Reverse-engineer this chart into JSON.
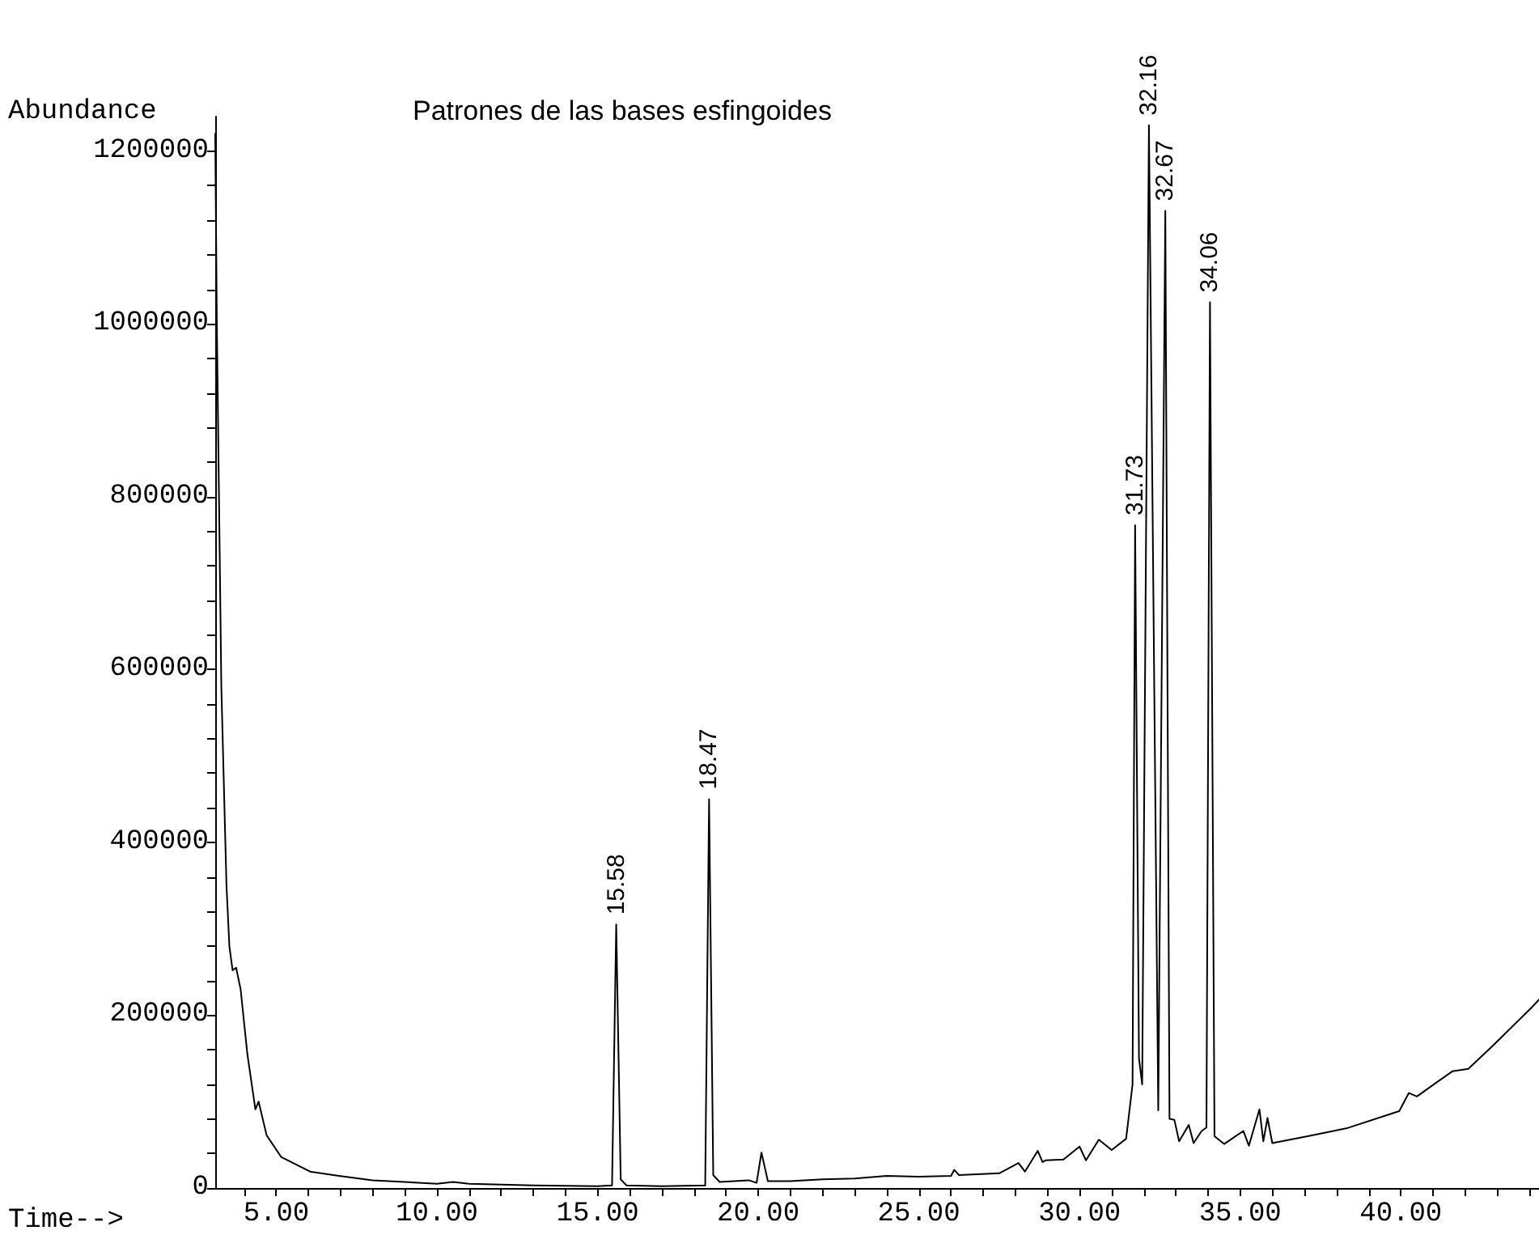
{
  "chart_data": {
    "type": "line",
    "title": "Patrones de las bases esfingoides",
    "xlabel": "Time-->",
    "ylabel": "Abundance",
    "x": [
      3.1,
      3.15,
      3.29,
      3.45,
      3.54,
      3.64,
      3.75,
      3.89,
      4.1,
      4.35,
      4.45,
      4.7,
      5.15,
      6.05,
      6.95,
      8.0,
      10.0,
      10.5,
      11.0,
      13.0,
      15.0,
      15.45,
      15.58,
      15.72,
      15.9,
      17.0,
      18.35,
      18.47,
      18.6,
      18.8,
      19.7,
      19.95,
      20.1,
      20.3,
      21.0,
      22.0,
      23.0,
      24.0,
      25.0,
      26.0,
      26.1,
      26.25,
      27.5,
      28.1,
      28.3,
      28.7,
      28.85,
      28.95,
      29.5,
      30.0,
      30.2,
      30.6,
      31.0,
      31.45,
      31.65,
      31.73,
      31.85,
      31.95,
      32.16,
      32.45,
      32.67,
      32.8,
      32.95,
      33.1,
      33.4,
      33.55,
      33.8,
      33.95,
      34.06,
      34.2,
      34.5,
      35.1,
      35.27,
      35.6,
      35.72,
      35.85,
      36.0,
      37.1,
      38.3,
      39.95,
      40.25,
      40.5,
      41.6,
      42.1,
      42.9,
      44.1,
      44.3
    ],
    "series": [
      {
        "color": "#000000",
        "values": [
          1220000,
          1000000,
          580000,
          350000,
          280000,
          252000,
          255000,
          230000,
          155000,
          91000,
          100000,
          61000,
          36000,
          19000,
          14000,
          9000,
          5000,
          7000,
          5000,
          3000,
          2000,
          3000,
          305000,
          10000,
          3000,
          2000,
          3000,
          450000,
          15000,
          7000,
          9000,
          6000,
          41000,
          8000,
          8000,
          10000,
          11000,
          14000,
          13000,
          14000,
          21000,
          15000,
          17000,
          29000,
          19000,
          43000,
          30000,
          32000,
          33000,
          48000,
          32000,
          56000,
          44000,
          57000,
          120000,
          767000,
          150000,
          120000,
          1230000,
          90000,
          1131000,
          80000,
          79000,
          54000,
          73000,
          52000,
          66000,
          70000,
          1025000,
          60000,
          51000,
          66000,
          49000,
          91000,
          54000,
          81000,
          52000,
          60000,
          69000,
          89000,
          110000,
          106000,
          135000,
          138000,
          166000,
          210000,
          218000
        ]
      }
    ],
    "xlim": [
      3.1,
      44.3
    ],
    "ylim": [
      0,
      1240000
    ],
    "xticks": [
      {
        "value": 4,
        "label": null
      },
      {
        "value": 5,
        "label": "5.00"
      },
      {
        "value": 6,
        "label": null
      },
      {
        "value": 7,
        "label": null
      },
      {
        "value": 8,
        "label": null
      },
      {
        "value": 9,
        "label": null
      },
      {
        "value": 10,
        "label": "10.00"
      },
      {
        "value": 11,
        "label": null
      },
      {
        "value": 12,
        "label": null
      },
      {
        "value": 13,
        "label": null
      },
      {
        "value": 14,
        "label": null
      },
      {
        "value": 15,
        "label": "15.00"
      },
      {
        "value": 16,
        "label": null
      },
      {
        "value": 17,
        "label": null
      },
      {
        "value": 18,
        "label": null
      },
      {
        "value": 19,
        "label": null
      },
      {
        "value": 20,
        "label": "20.00"
      },
      {
        "value": 21,
        "label": null
      },
      {
        "value": 22,
        "label": null
      },
      {
        "value": 23,
        "label": null
      },
      {
        "value": 24,
        "label": null
      },
      {
        "value": 25,
        "label": "25.00"
      },
      {
        "value": 26,
        "label": null
      },
      {
        "value": 27,
        "label": null
      },
      {
        "value": 28,
        "label": null
      },
      {
        "value": 29,
        "label": null
      },
      {
        "value": 30,
        "label": "30.00"
      },
      {
        "value": 31,
        "label": null
      },
      {
        "value": 32,
        "label": null
      },
      {
        "value": 33,
        "label": null
      },
      {
        "value": 34,
        "label": null
      },
      {
        "value": 35,
        "label": "35.00"
      },
      {
        "value": 36,
        "label": null
      },
      {
        "value": 37,
        "label": null
      },
      {
        "value": 38,
        "label": null
      },
      {
        "value": 39,
        "label": null
      },
      {
        "value": 40,
        "label": "40.00"
      },
      {
        "value": 41,
        "label": null
      },
      {
        "value": 42,
        "label": null
      },
      {
        "value": 43,
        "label": null
      },
      {
        "value": 44,
        "label": null
      }
    ],
    "yticks": [
      0,
      {
        "value": 40000,
        "label": null
      },
      {
        "value": 80000,
        "label": null
      },
      {
        "value": 120000,
        "label": null
      },
      {
        "value": 160000,
        "label": null
      },
      200000,
      {
        "value": 240000,
        "label": null
      },
      {
        "value": 280000,
        "label": null
      },
      {
        "value": 320000,
        "label": null
      },
      {
        "value": 360000,
        "label": null
      },
      400000,
      {
        "value": 440000,
        "label": null
      },
      {
        "value": 480000,
        "label": null
      },
      {
        "value": 520000,
        "label": null
      },
      {
        "value": 560000,
        "label": null
      },
      600000,
      {
        "value": 640000,
        "label": null
      },
      {
        "value": 680000,
        "label": null
      },
      {
        "value": 720000,
        "label": null
      },
      {
        "value": 760000,
        "label": null
      },
      800000,
      {
        "value": 840000,
        "label": null
      },
      {
        "value": 880000,
        "label": null
      },
      {
        "value": 920000,
        "label": null
      },
      {
        "value": 960000,
        "label": null
      },
      1000000,
      {
        "value": 1040000,
        "label": null
      },
      {
        "value": 1080000,
        "label": null
      },
      {
        "value": 1120000,
        "label": null
      },
      {
        "value": 1160000,
        "label": null
      },
      1200000
    ],
    "annotations": [
      {
        "text": "15.58",
        "x": 15.58,
        "y": 305000
      },
      {
        "text": "18.47",
        "x": 18.47,
        "y": 450000
      },
      {
        "text": "31.73",
        "x": 31.73,
        "y": 767000
      },
      {
        "text": "32.16",
        "x": 32.16,
        "y": 1230000
      },
      {
        "text": "32.67",
        "x": 32.67,
        "y": 1131000
      },
      {
        "text": "34.06",
        "x": 34.06,
        "y": 1025000
      }
    ],
    "marker": "none",
    "line_style": "solid"
  }
}
